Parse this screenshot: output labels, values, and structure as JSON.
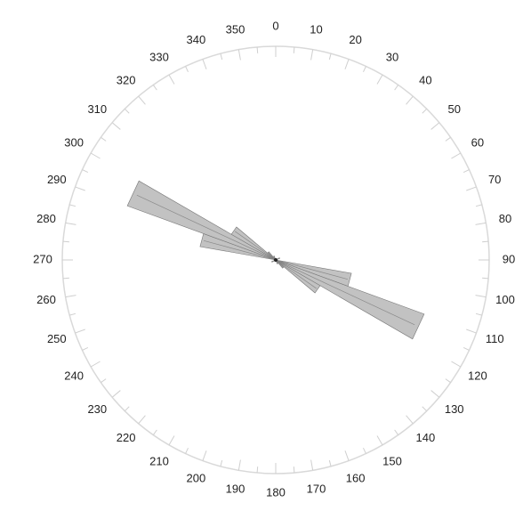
{
  "chart_data": {
    "type": "rose",
    "title": "",
    "direction_labels": [
      "0",
      "10",
      "20",
      "30",
      "40",
      "50",
      "60",
      "70",
      "80",
      "90",
      "100",
      "110",
      "120",
      "130",
      "140",
      "150",
      "160",
      "170",
      "180",
      "190",
      "200",
      "210",
      "220",
      "230",
      "240",
      "250",
      "260",
      "270",
      "280",
      "290",
      "300",
      "310",
      "320",
      "330",
      "340",
      "350"
    ],
    "angular_range_deg": [
      0,
      360
    ],
    "bin_width_deg": 10,
    "symmetric": true,
    "radial_range": [
      0,
      1
    ],
    "radial_ticks_shown": false,
    "petals": [
      {
        "start_deg": 100,
        "end_deg": 110,
        "value": 0.36
      },
      {
        "start_deg": 110,
        "end_deg": 120,
        "value": 0.74
      },
      {
        "start_deg": 120,
        "end_deg": 130,
        "value": 0.24
      },
      {
        "start_deg": 130,
        "end_deg": 140,
        "value": 0.05
      },
      {
        "start_deg": 60,
        "end_deg": 70,
        "value": 0.02
      },
      {
        "start_deg": 150,
        "end_deg": 160,
        "value": 0.02
      }
    ],
    "colors": {
      "petal_fill": "#c2c2c2",
      "petal_stroke": "#777777",
      "ring": "#d9d9d9",
      "tick": "#cfcfcf",
      "label": "#222222"
    }
  }
}
